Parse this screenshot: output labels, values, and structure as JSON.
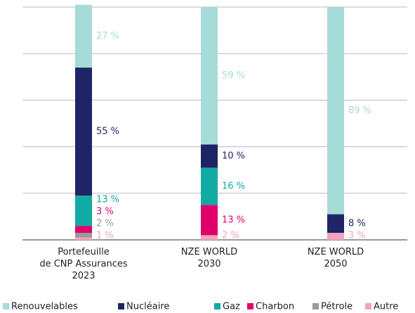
{
  "chart_data": {
    "type": "stacked-bar",
    "categories": [
      "Portefeuille\nde CNP Assurances\n2023",
      "NZE WORLD\n2030",
      "NZE WORLD\n2050"
    ],
    "series": [
      {
        "name": "Renouvelables",
        "color": "#a6dcd8",
        "values": [
          27,
          59,
          89
        ],
        "value_labels": [
          "27 %",
          "59 %",
          "89 %"
        ]
      },
      {
        "name": "Nucléaire",
        "color": "#1f2466",
        "values": [
          55,
          10,
          8
        ],
        "value_labels": [
          "55 %",
          "10 %",
          "8 %"
        ]
      },
      {
        "name": "Gaz",
        "color": "#12aaa5",
        "values": [
          13,
          16,
          null
        ],
        "value_labels": [
          "13 %",
          "16 %",
          null
        ]
      },
      {
        "name": "Charbon",
        "color": "#e0006a",
        "values": [
          3,
          13,
          null
        ],
        "value_labels": [
          "3 %",
          "13 %",
          null
        ]
      },
      {
        "name": "Pétrole",
        "color": "#9a9a9a",
        "values": [
          2,
          null,
          null
        ],
        "value_labels": [
          "2 %",
          null,
          null
        ]
      },
      {
        "name": "Autre",
        "color": "#f3a3bd",
        "values": [
          1,
          2,
          3
        ],
        "value_labels": [
          "1 %",
          "2 %",
          "3 %"
        ]
      }
    ],
    "ylim": [
      0,
      100
    ],
    "yticks": [
      0,
      20,
      40,
      60,
      80,
      100
    ],
    "grid": true,
    "legend": "bottom"
  }
}
